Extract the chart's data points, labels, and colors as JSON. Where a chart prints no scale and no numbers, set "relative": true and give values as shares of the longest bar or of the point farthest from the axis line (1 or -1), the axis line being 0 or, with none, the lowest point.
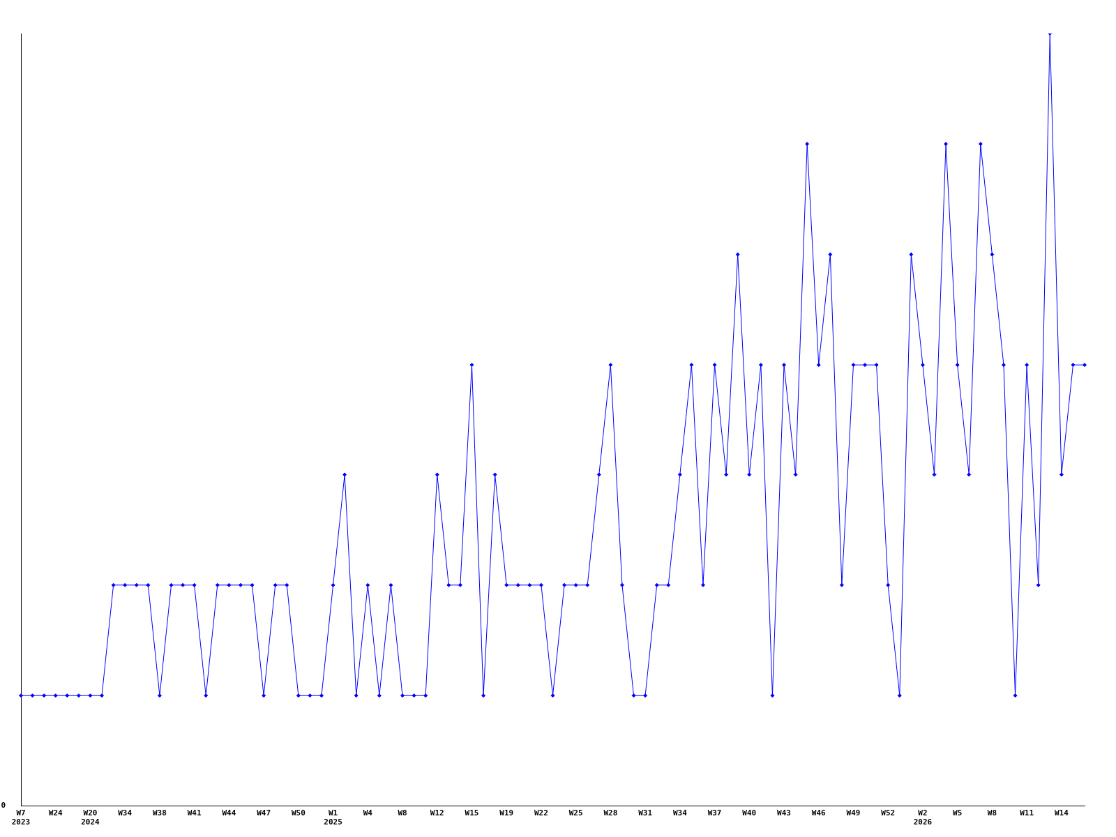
{
  "chart_data": {
    "type": "line",
    "relative": true,
    "marker": "diamond",
    "line_style": "solid",
    "grid": false,
    "legend": false,
    "annotations": [
      "0"
    ],
    "categories": [
      "W7\n2023",
      null,
      null,
      "W24",
      null,
      null,
      "W20\n2024",
      null,
      null,
      "W34",
      null,
      null,
      "W38",
      null,
      null,
      "W41",
      null,
      null,
      "W44",
      null,
      null,
      "W47",
      null,
      null,
      "W50",
      null,
      null,
      "W1\n2025",
      null,
      null,
      "W4",
      null,
      null,
      "W8",
      null,
      null,
      "W12",
      null,
      null,
      "W15",
      null,
      null,
      "W19",
      null,
      null,
      "W22",
      null,
      null,
      "W25",
      null,
      null,
      "W28",
      null,
      null,
      "W31",
      null,
      null,
      "W34",
      null,
      null,
      "W37",
      null,
      null,
      "W40",
      null,
      null,
      "W43",
      null,
      null,
      "W46",
      null,
      null,
      "W49",
      null,
      null,
      "W52",
      null,
      null,
      "W2\n2026",
      null,
      null,
      "W5",
      null,
      null,
      "W8",
      null,
      null,
      "W11",
      null,
      null,
      "W14",
      null,
      null
    ],
    "series": [
      {
        "color": "#0000ff",
        "values": [
          0.143,
          0.143,
          0.143,
          0.143,
          0.143,
          0.143,
          0.143,
          0.143,
          0.286,
          0.286,
          0.286,
          0.286,
          0.143,
          0.286,
          0.286,
          0.286,
          0.143,
          0.286,
          0.286,
          0.286,
          0.286,
          0.143,
          0.286,
          0.286,
          0.143,
          0.143,
          0.143,
          0.286,
          0.429,
          0.143,
          0.286,
          0.143,
          0.286,
          0.143,
          0.143,
          0.143,
          0.429,
          0.286,
          0.286,
          0.571,
          0.143,
          0.429,
          0.286,
          0.286,
          0.286,
          0.286,
          0.143,
          0.286,
          0.286,
          0.286,
          0.429,
          0.571,
          0.286,
          0.143,
          0.143,
          0.286,
          0.286,
          0.429,
          0.571,
          0.286,
          0.571,
          0.429,
          0.714,
          0.429,
          0.571,
          0.143,
          0.571,
          0.429,
          0.857,
          0.571,
          0.714,
          0.286,
          0.571,
          0.571,
          0.571,
          0.286,
          0.143,
          0.714,
          0.571,
          0.429,
          0.857,
          0.571,
          0.429,
          0.857,
          0.714,
          0.571,
          0.143,
          0.571,
          0.286,
          1,
          0.429,
          0.571,
          0.571
        ]
      }
    ]
  }
}
